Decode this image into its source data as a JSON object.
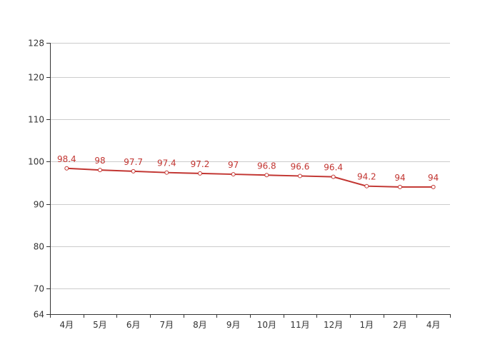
{
  "chart_data": {
    "type": "line",
    "title": "",
    "xlabel": "",
    "ylabel": "",
    "categories": [
      "4月",
      "5月",
      "6月",
      "7月",
      "8月",
      "9月",
      "10月",
      "11月",
      "12月",
      "1月",
      "2月",
      "4月"
    ],
    "series": [
      {
        "values": [
          98.4,
          98,
          97.7,
          97.4,
          97.2,
          97,
          96.8,
          96.6,
          96.4,
          94.2,
          94,
          94
        ],
        "labels": [
          "98.4",
          "98",
          "97.7",
          "97.4",
          "97.2",
          "97",
          "96.8",
          "96.6",
          "96.4",
          "94.2",
          "94",
          "94"
        ]
      }
    ],
    "ylim": [
      64,
      128
    ],
    "yticks": [
      64,
      70,
      80,
      90,
      100,
      110,
      120,
      128
    ],
    "ytick_labels": [
      "64",
      "70",
      "80",
      "90",
      "100",
      "110",
      "120",
      "128"
    ],
    "grid": true,
    "legend": "none"
  },
  "colors": {
    "series": "#c23531",
    "grid": "#cccccc",
    "axis": "#333333",
    "text": "#333333"
  }
}
